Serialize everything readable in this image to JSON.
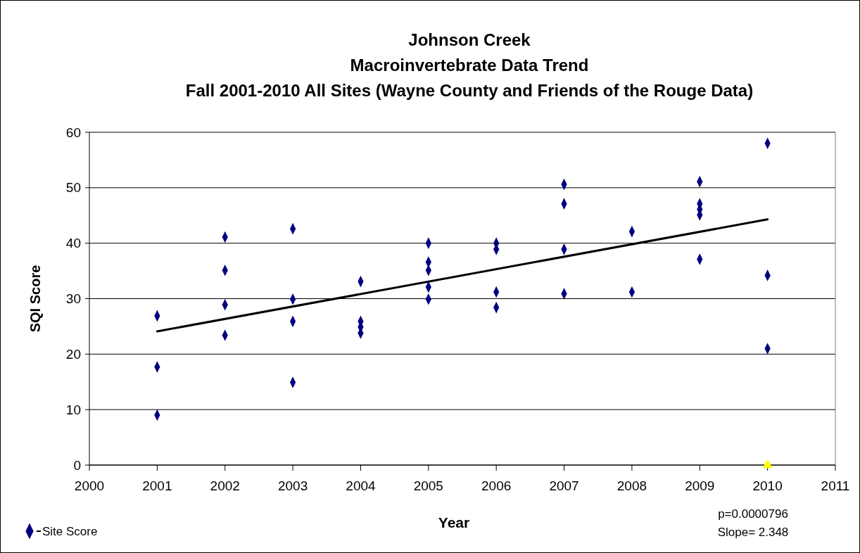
{
  "chart_data": {
    "type": "scatter",
    "title": "Johnson Creek\nMacroinvertebrate Data Trend\nFall 2001-2010 All Sites (Wayne County and Friends of the Rouge Data)",
    "xlabel": "Year",
    "ylabel": "SQI Score",
    "xlim": [
      2000,
      2011
    ],
    "xticks": [
      2000,
      2001,
      2002,
      2003,
      2004,
      2005,
      2006,
      2007,
      2008,
      2009,
      2010,
      2011
    ],
    "ylim": [
      0,
      60
    ],
    "yticks": [
      0,
      10,
      20,
      30,
      40,
      50,
      60
    ],
    "grid": "y",
    "legend": "bottom left",
    "series": [
      {
        "name": "Site Score",
        "marker": "diamond",
        "color": "#000080",
        "x": [
          2001,
          2001,
          2001,
          2002,
          2002,
          2002,
          2002,
          2003,
          2003,
          2003,
          2003,
          2004,
          2004,
          2004,
          2004,
          2005,
          2005,
          2005,
          2005,
          2005,
          2006,
          2006,
          2006,
          2006,
          2007,
          2007,
          2007,
          2007,
          2008,
          2008,
          2009,
          2009,
          2009,
          2009,
          2009,
          2010,
          2010,
          2010
        ],
        "values": [
          26.9,
          17.7,
          9.0,
          41.1,
          35.1,
          28.9,
          23.4,
          42.6,
          29.9,
          25.9,
          14.9,
          33.1,
          25.9,
          24.9,
          23.8,
          40.0,
          36.6,
          35.1,
          32.1,
          29.9,
          40.0,
          38.9,
          31.2,
          28.4,
          50.6,
          47.1,
          38.9,
          30.9,
          42.1,
          31.2,
          51.1,
          47.1,
          46.1,
          45.1,
          37.1,
          58.0,
          34.2,
          21.0
        ]
      },
      {
        "type": "line",
        "color": "#000000",
        "x": [
          2001,
          2010
        ],
        "values": [
          24.1,
          44.3
        ]
      },
      {
        "marker": "triangle",
        "color": "#ffff00",
        "x": [
          2010
        ],
        "values": [
          0
        ]
      }
    ],
    "annotations": [
      "p=0.0000796",
      "Slope= 2.348"
    ]
  }
}
